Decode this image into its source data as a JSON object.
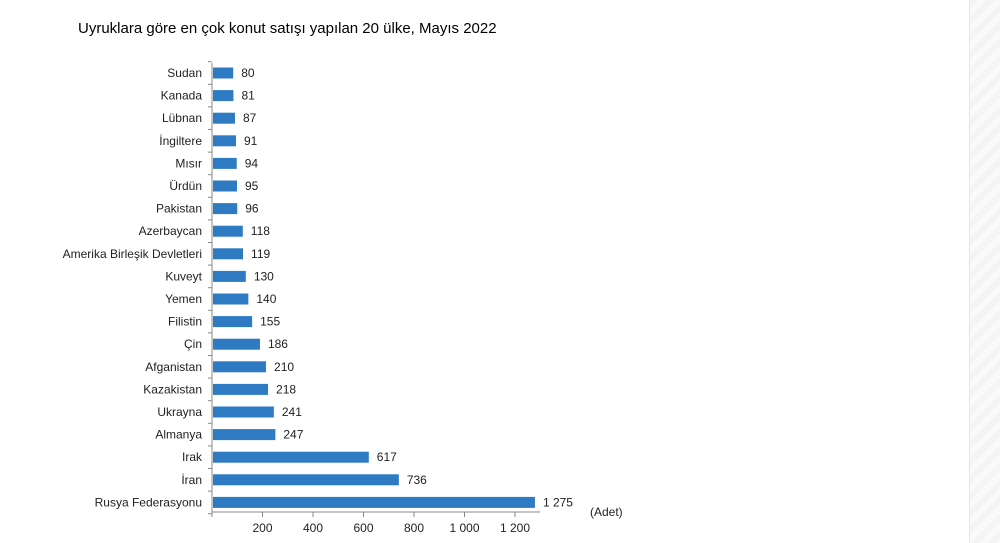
{
  "chart_data": {
    "type": "bar",
    "orientation": "horizontal",
    "title": "Uyruklara göre en çok konut satışı yapılan 20 ülke, Mayıs 2022",
    "unit_label": "(Adet)",
    "categories": [
      "Sudan",
      "Kanada",
      "Lübnan",
      "İngiltere",
      "Mısır",
      "Ürdün",
      "Pakistan",
      "Azerbaycan",
      "Amerika Birleşik Devletleri",
      "Kuveyt",
      "Yemen",
      "Filistin",
      "Çin",
      "Afganistan",
      "Kazakistan",
      "Ukrayna",
      "Almanya",
      "Irak",
      "İran",
      "Rusya Federasyonu"
    ],
    "values": [
      80,
      81,
      87,
      91,
      94,
      95,
      96,
      118,
      119,
      130,
      140,
      155,
      186,
      210,
      218,
      241,
      247,
      617,
      736,
      1275
    ],
    "value_labels": [
      "80",
      "81",
      "87",
      "91",
      "94",
      "95",
      "96",
      "118",
      "119",
      "130",
      "140",
      "155",
      "186",
      "210",
      "218",
      "241",
      "247",
      "617",
      "736",
      "1 275"
    ],
    "xlim": [
      0,
      1300
    ],
    "x_ticks": [
      200,
      400,
      600,
      800,
      1000,
      1200
    ],
    "x_tick_labels": [
      "200",
      "400",
      "600",
      "800",
      "1 000",
      "1 200"
    ],
    "bar_color": "#2e7bc4",
    "grid": false,
    "legend": "none"
  }
}
